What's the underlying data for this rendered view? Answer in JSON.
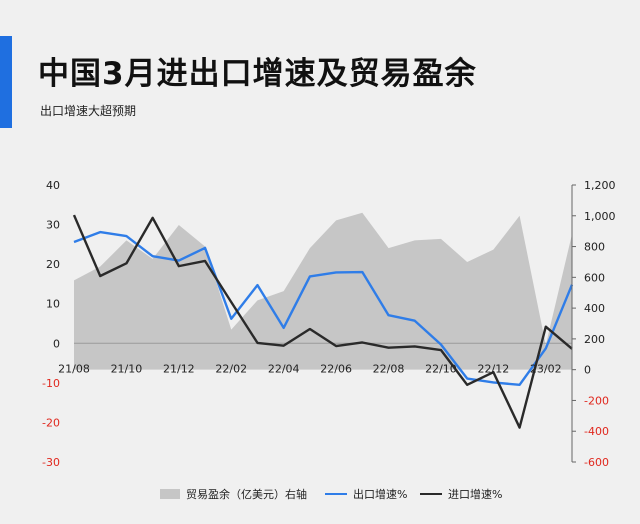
{
  "title": "中国3月进出口增速及贸易盈余",
  "subtitle": "出口增速大超预期",
  "colors": {
    "accent": "#1f6fe0",
    "area": "#c6c6c6",
    "export_line": "#2f7de8",
    "import_line": "#2a2a2a",
    "negative_tick": "#e0281e"
  },
  "legend": {
    "area_label": "贸易盈余（亿美元）右轴",
    "export_label": "出口增速%",
    "import_label": "进口增速%"
  },
  "chart_data": {
    "type": "line",
    "x_ticks": [
      "21/08",
      "21/10",
      "21/12",
      "22/02",
      "22/04",
      "22/06",
      "22/08",
      "22/10",
      "22/12",
      "23/02"
    ],
    "left_axis": {
      "ylim": [
        -30,
        40
      ],
      "ticks": [
        "40",
        "30",
        "20",
        "10",
        "0",
        "-10",
        "-20",
        "-30"
      ]
    },
    "right_axis": {
      "ylim": [
        -600,
        1200
      ],
      "ticks": [
        "1,200",
        "1,000",
        "800",
        "600",
        "400",
        "200",
        "0",
        "-200",
        "-400",
        "-600"
      ]
    },
    "series": [
      {
        "name": "贸易盈余（亿美元）右轴",
        "kind": "area",
        "axis": "right",
        "x": [
          "21/08",
          "21/09",
          "21/10",
          "21/11",
          "21/12",
          "22/01",
          "22/02",
          "22/03",
          "22/04",
          "22/05",
          "22/06",
          "22/07",
          "22/08",
          "22/09",
          "22/10",
          "22/11",
          "22/12",
          "23/01",
          "23/02",
          "23/03"
        ],
        "values": [
          580,
          670,
          840,
          720,
          940,
          800,
          260,
          450,
          510,
          790,
          970,
          1020,
          790,
          840,
          850,
          700,
          780,
          1000,
          160,
          880
        ]
      },
      {
        "name": "出口增速%",
        "kind": "line",
        "axis": "left",
        "x": [
          "21/08",
          "21/09",
          "21/10",
          "21/11",
          "21/12",
          "22/01",
          "22/02",
          "22/03",
          "22/04",
          "22/05",
          "22/06",
          "22/07",
          "22/08",
          "22/09",
          "22/10",
          "22/11",
          "22/12",
          "23/01",
          "23/02",
          "23/03"
        ],
        "values": [
          25.6,
          28.1,
          27.1,
          22.0,
          20.9,
          24.1,
          6.2,
          14.7,
          3.9,
          16.9,
          17.9,
          18.0,
          7.1,
          5.7,
          -0.3,
          -8.9,
          -9.9,
          -10.5,
          -1.3,
          14.8
        ]
      },
      {
        "name": "进口增速%",
        "kind": "line",
        "axis": "left",
        "x": [
          "21/08",
          "21/09",
          "21/10",
          "21/11",
          "21/12",
          "22/01",
          "22/02",
          "22/03",
          "22/04",
          "22/05",
          "22/06",
          "22/07",
          "22/08",
          "22/09",
          "22/10",
          "22/11",
          "22/12",
          "23/01",
          "23/02",
          "23/03"
        ],
        "values": [
          32.4,
          17.0,
          20.2,
          31.7,
          19.5,
          20.8,
          10.4,
          0.1,
          -0.6,
          3.6,
          -0.7,
          0.2,
          -1.1,
          -0.8,
          -1.7,
          -10.5,
          -7.3,
          -21.3,
          4.2,
          -1.4
        ]
      }
    ]
  }
}
